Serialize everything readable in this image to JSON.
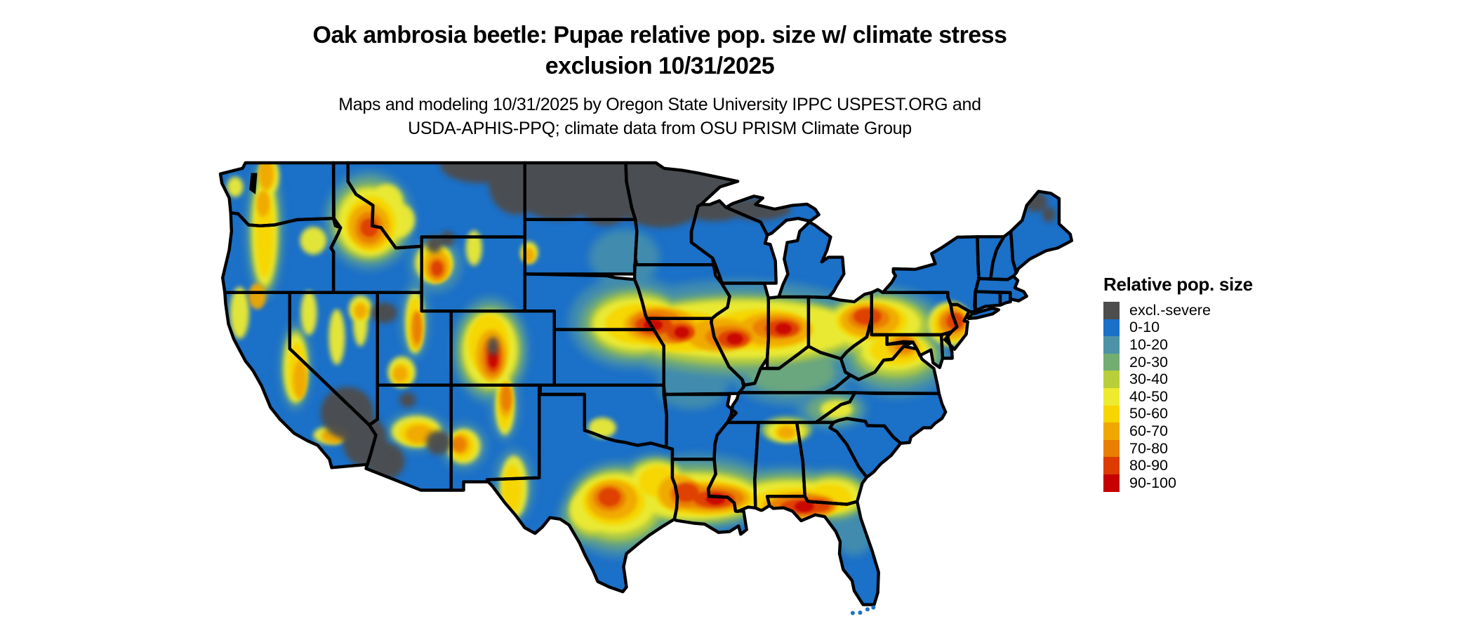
{
  "header": {
    "title_line1": "Oak ambrosia beetle: Pupae relative pop. size w/ climate stress",
    "title_line2": "exclusion 10/31/2025",
    "subtitle_line1": "Maps and modeling 10/31/2025 by Oregon State University IPPC USPEST.ORG and",
    "subtitle_line2": "USDA-APHIS-PPQ; climate data from OSU PRISM Climate Group"
  },
  "legend": {
    "title": "Relative pop. size",
    "items": [
      {
        "label": "excl.-severe",
        "color": "#4d4d4d"
      },
      {
        "label": "0-10",
        "color": "#1b70c8"
      },
      {
        "label": "10-20",
        "color": "#4c93a8"
      },
      {
        "label": "20-30",
        "color": "#74ad72"
      },
      {
        "label": "30-40",
        "color": "#b9cf3a"
      },
      {
        "label": "40-50",
        "color": "#edeb30"
      },
      {
        "label": "50-60",
        "color": "#f7d500"
      },
      {
        "label": "60-70",
        "color": "#f0a800"
      },
      {
        "label": "70-80",
        "color": "#ea7e00"
      },
      {
        "label": "80-90",
        "color": "#dd3b00"
      },
      {
        "label": "90-100",
        "color": "#c60000"
      }
    ]
  },
  "map": {
    "border_color": "#000000",
    "background_color": "#ffffff"
  }
}
